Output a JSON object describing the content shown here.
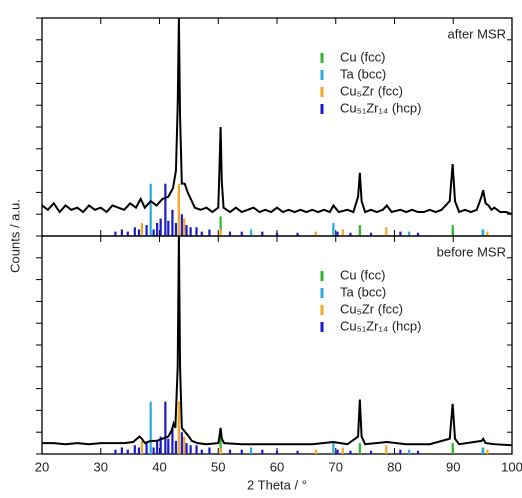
{
  "chart_data": [
    {
      "type": "line",
      "title": "after MSR",
      "ylabel": "Counts / a.u.",
      "xlim": [
        20,
        100
      ],
      "xticks": [
        20,
        30,
        40,
        50,
        60,
        70,
        80,
        90,
        100
      ],
      "ylim": [
        0,
        100
      ],
      "yticks": [
        0,
        10,
        20,
        30,
        40,
        50,
        60,
        70,
        80,
        90,
        100
      ],
      "series": [
        {
          "color": "#000000",
          "x": [
            20,
            21,
            22,
            23,
            24,
            25,
            26,
            27,
            28,
            29,
            30,
            31,
            32,
            33,
            34,
            35,
            36,
            36.8,
            37.5,
            38.5,
            39.5,
            40.5,
            41.5,
            42.3,
            42.8,
            43.1,
            43.3,
            43.5,
            43.8,
            44.3,
            44.8,
            45.5,
            46,
            47,
            48,
            49,
            50,
            50.2,
            50.4,
            50.6,
            50.9,
            52,
            53,
            54,
            55,
            56,
            57,
            58,
            59,
            60,
            61,
            62,
            63,
            64,
            65,
            66,
            67,
            68,
            69,
            69.6,
            70.5,
            72,
            73,
            73.8,
            74.1,
            74.4,
            75,
            76,
            77,
            78,
            78.7,
            79.5,
            81,
            82,
            83,
            84,
            85,
            86,
            87,
            88,
            89.4,
            89.9,
            90.3,
            91,
            92,
            93,
            94,
            94.8,
            95.1,
            95.5,
            96,
            96.5,
            97,
            98,
            99,
            100
          ],
          "values": [
            14,
            12,
            15,
            11,
            14,
            12,
            13,
            11,
            14,
            12,
            13,
            11,
            14,
            13,
            12,
            15,
            13,
            17,
            13,
            16,
            14,
            17,
            18,
            22,
            30,
            60,
            100,
            55,
            24,
            24,
            20,
            16,
            13,
            12,
            13,
            11,
            13,
            30,
            50,
            25,
            13,
            11,
            13,
            11,
            12,
            13,
            11,
            12,
            11,
            13,
            11,
            12,
            11,
            12,
            11,
            12,
            11,
            12,
            11,
            14,
            11,
            12,
            11,
            18,
            29,
            16,
            11,
            12,
            11,
            12,
            14,
            11,
            12,
            11,
            12,
            11,
            11,
            12,
            11,
            12,
            16,
            33,
            16,
            11,
            12,
            11,
            12,
            18,
            21,
            15,
            14,
            12,
            13,
            11,
            11,
            10
          ]
        },
        {
          "name": "Cu (fcc)",
          "style": "stick",
          "color": "#2db52d",
          "x": [
            43.3,
            50.4,
            74.1,
            89.9,
            95.1
          ],
          "values": [
            20,
            9,
            5,
            5,
            3
          ]
        },
        {
          "name": "Ta (bcc)",
          "style": "stick",
          "color": "#29a9e0",
          "x": [
            38.5,
            55.6,
            69.6,
            82.5,
            95.0
          ],
          "values": [
            24,
            3,
            6,
            2,
            3
          ]
        },
        {
          "name": "Cu₅Zr (fcc)",
          "style": "stick",
          "color": "#f5a623",
          "x": [
            37.0,
            43.3,
            44.2,
            50.4,
            66.6,
            71.2,
            78.6,
            95.8
          ],
          "values": [
            6,
            24,
            8,
            3,
            2,
            3,
            4,
            2
          ]
        },
        {
          "name": "Cu₅₁Zr₁₄ (hcp)",
          "style": "stick",
          "color": "#1a1ac8",
          "x": [
            32.5,
            33.6,
            34.6,
            35.8,
            36.5,
            37.8,
            39.0,
            39.6,
            40.2,
            41.0,
            41.5,
            42.2,
            42.8,
            43.8,
            44.6,
            45.3,
            46.3,
            47.2,
            48.5,
            52.0,
            54.0,
            57.5,
            60.0,
            63.5,
            70.3,
            72.5,
            76.0,
            81.0,
            84.0
          ],
          "values": [
            2,
            3,
            2,
            4,
            3,
            5,
            3,
            6,
            8,
            24,
            7,
            12,
            6,
            10,
            5,
            4,
            4,
            2,
            3,
            2,
            2,
            2,
            1.5,
            1.5,
            2,
            1.5,
            1.5,
            2,
            1.5
          ]
        }
      ]
    },
    {
      "type": "line",
      "title": "before MSR",
      "xlabel": "2 Theta / °",
      "xlim": [
        20,
        100
      ],
      "xticks": [
        20,
        30,
        40,
        50,
        60,
        70,
        80,
        90,
        100
      ],
      "ylim": [
        0,
        100
      ],
      "yticks": [
        0,
        10,
        20,
        30,
        40,
        50,
        60,
        70,
        80,
        90,
        100
      ],
      "series": [
        {
          "color": "#000000",
          "x": [
            20,
            22,
            24,
            26,
            28,
            30,
            32,
            34,
            35.5,
            36.6,
            37,
            37.5,
            38.5,
            39.5,
            40.5,
            41.5,
            42.1,
            42.4,
            42.7,
            43.1,
            43.3,
            43.5,
            43.8,
            44.4,
            45,
            45.5,
            46.5,
            48,
            50,
            50.2,
            50.4,
            50.6,
            51,
            54,
            58,
            62,
            66,
            69.6,
            72,
            73.8,
            74.1,
            74.4,
            75,
            78.7,
            82,
            86,
            89.4,
            89.9,
            90.3,
            91,
            94.8,
            95.1,
            95.5,
            97,
            100
          ],
          "values": [
            5,
            5,
            4.5,
            5,
            4.5,
            5,
            5,
            5,
            5.5,
            8,
            7,
            5,
            6,
            6,
            7,
            8,
            11,
            14,
            12,
            40,
            100,
            40,
            12,
            10,
            8,
            6,
            5,
            4.5,
            5,
            8,
            12,
            7,
            5,
            4.5,
            4.5,
            4.5,
            4.5,
            5.5,
            4.5,
            8,
            25,
            8,
            4.5,
            5.5,
            4.5,
            4.5,
            7,
            23,
            7,
            4.5,
            6,
            7,
            5,
            4.5,
            4
          ]
        },
        {
          "name": "Cu (fcc)",
          "style": "stick",
          "color": "#2db52d",
          "x": [
            43.3,
            50.4,
            74.1,
            89.9,
            95.1
          ],
          "values": [
            20,
            9,
            5,
            5,
            3
          ]
        },
        {
          "name": "Ta (bcc)",
          "style": "stick",
          "color": "#29a9e0",
          "x": [
            38.5,
            55.6,
            69.6,
            82.5,
            95.0
          ],
          "values": [
            24,
            3,
            6,
            2,
            3
          ]
        },
        {
          "name": "Cu₅Zr (fcc)",
          "style": "stick",
          "color": "#f5a623",
          "x": [
            37.0,
            43.3,
            44.2,
            50.4,
            66.6,
            71.2,
            78.6,
            95.8
          ],
          "values": [
            6,
            24,
            8,
            3,
            2,
            3,
            4,
            2
          ]
        },
        {
          "name": "Cu₅₁Zr₁₄ (hcp)",
          "style": "stick",
          "color": "#1a1ac8",
          "x": [
            32.5,
            33.6,
            34.6,
            35.8,
            36.5,
            37.8,
            39.0,
            39.6,
            40.2,
            41.0,
            41.5,
            42.2,
            42.8,
            43.8,
            44.6,
            45.3,
            46.3,
            47.2,
            48.5,
            52.0,
            54.0,
            57.5,
            60.0,
            63.5,
            70.3,
            72.5,
            76.0,
            81.0,
            84.0
          ],
          "values": [
            2,
            3,
            2,
            4,
            3,
            5,
            3,
            6,
            8,
            24,
            7,
            12,
            6,
            10,
            5,
            4,
            4,
            2,
            3,
            2,
            2,
            2,
            1.5,
            1.5,
            2,
            1.5,
            1.5,
            2,
            1.5
          ]
        }
      ]
    }
  ]
}
